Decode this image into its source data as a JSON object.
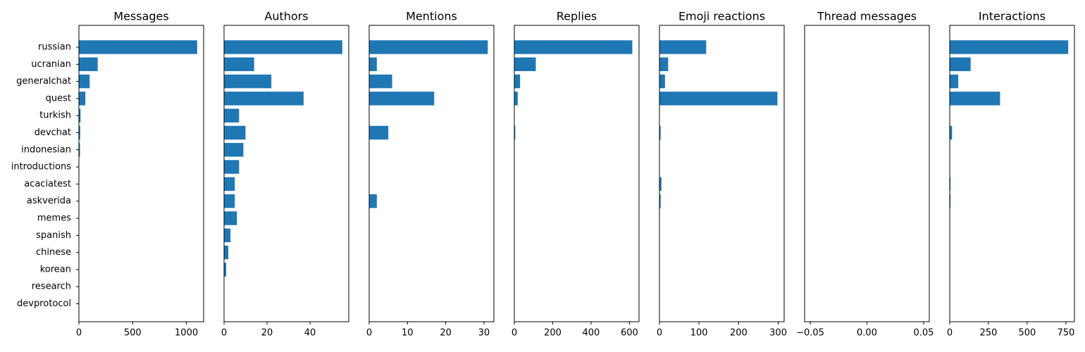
{
  "chart_data": {
    "type": "bar",
    "orientation": "horizontal",
    "color": "#1f77b4",
    "categories": [
      "russian",
      "ucranian",
      "generalchat",
      "quest",
      "turkish",
      "devchat",
      "indonesian",
      "introductions",
      "acaciatest",
      "askverida",
      "memes",
      "spanish",
      "chinese",
      "korean",
      "research",
      "devprotocol"
    ],
    "panels": [
      {
        "title": "Messages",
        "xlim": [
          0,
          1160
        ],
        "xticks": [
          0,
          500,
          1000
        ],
        "xtick_labels": [
          "0",
          "500",
          "1000"
        ],
        "values": [
          1100,
          175,
          100,
          60,
          15,
          12,
          10,
          0,
          0,
          0,
          0,
          0,
          0,
          0,
          0,
          0
        ]
      },
      {
        "title": "Authors",
        "xlim": [
          0,
          58
        ],
        "xticks": [
          0,
          20,
          40
        ],
        "xtick_labels": [
          "0",
          "20",
          "40"
        ],
        "values": [
          55,
          14,
          22,
          37,
          7,
          10,
          9,
          7,
          5,
          5,
          6,
          3,
          2,
          1,
          0,
          0
        ]
      },
      {
        "title": "Mentions",
        "xlim": [
          0,
          32.6
        ],
        "xticks": [
          0,
          10,
          20,
          30
        ],
        "xtick_labels": [
          "0",
          "10",
          "20",
          "30"
        ],
        "values": [
          31,
          2,
          6,
          17,
          0,
          5,
          0,
          0,
          0,
          2,
          0,
          0,
          0,
          0,
          0,
          0
        ]
      },
      {
        "title": "Replies",
        "xlim": [
          0,
          650
        ],
        "xticks": [
          0,
          200,
          400,
          600
        ],
        "xtick_labels": [
          "0",
          "200",
          "400",
          "600"
        ],
        "values": [
          615,
          112,
          30,
          18,
          0,
          5,
          0,
          0,
          0,
          0,
          0,
          0,
          0,
          0,
          0,
          0
        ]
      },
      {
        "title": "Emoji reactions",
        "xlim": [
          0,
          315
        ],
        "xticks": [
          0,
          100,
          200,
          300
        ],
        "xtick_labels": [
          "0",
          "100",
          "200",
          "300"
        ],
        "values": [
          118,
          22,
          14,
          298,
          0,
          3,
          0,
          0,
          5,
          3,
          0,
          0,
          0,
          0,
          0,
          0
        ]
      },
      {
        "title": "Thread messages",
        "xlim": [
          -0.055,
          0.055
        ],
        "xticks": [
          -0.05,
          0,
          0.05
        ],
        "xtick_labels": [
          "−0.05",
          "0.00",
          "0.05"
        ],
        "values": [
          0,
          0,
          0,
          0,
          0,
          0,
          0,
          0,
          0,
          0,
          0,
          0,
          0,
          0,
          0,
          0
        ]
      },
      {
        "title": "Interactions",
        "xlim": [
          0,
          805
        ],
        "xticks": [
          0,
          250,
          500,
          750
        ],
        "xtick_labels": [
          "0",
          "250",
          "500",
          "750"
        ],
        "values": [
          765,
          135,
          55,
          325,
          0,
          15,
          0,
          0,
          5,
          5,
          0,
          0,
          0,
          0,
          0,
          0
        ]
      }
    ]
  }
}
